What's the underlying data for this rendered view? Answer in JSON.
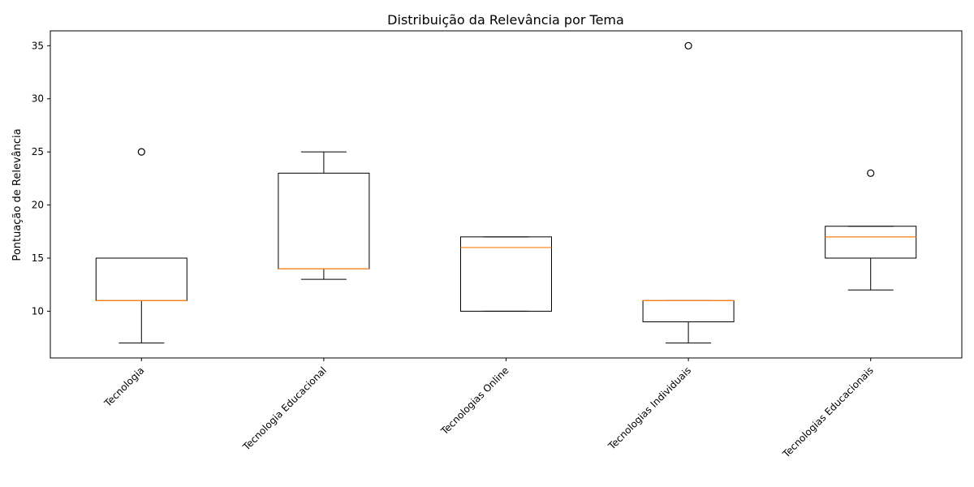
{
  "chart_data": {
    "type": "box",
    "title": "Distribuição da Relevância por Tema",
    "xlabel": "",
    "ylabel": "Pontuação de Relevância",
    "ylim": [
      5.6,
      36.4
    ],
    "yticks": [
      10,
      15,
      20,
      25,
      30,
      35
    ],
    "categories": [
      "Tecnologia",
      "Tecnologia Educacional",
      "Tecnologias Online",
      "Tecnologias Individuais",
      "Tecnologias Educacionais"
    ],
    "boxes": [
      {
        "category": "Tecnologia",
        "whisker_low": 7,
        "q1": 11,
        "median": 11,
        "q3": 15,
        "whisker_high": 15,
        "outliers": [
          25
        ]
      },
      {
        "category": "Tecnologia Educacional",
        "whisker_low": 13,
        "q1": 14,
        "median": 14,
        "q3": 23,
        "whisker_high": 25,
        "outliers": []
      },
      {
        "category": "Tecnologias Online",
        "whisker_low": 10,
        "q1": 10,
        "median": 16,
        "q3": 17,
        "whisker_high": 17,
        "outliers": []
      },
      {
        "category": "Tecnologias Individuais",
        "whisker_low": 7,
        "q1": 9,
        "median": 11,
        "q3": 11,
        "whisker_high": 11,
        "outliers": [
          35
        ]
      },
      {
        "category": "Tecnologias Educacionais",
        "whisker_low": 12,
        "q1": 15,
        "median": 17,
        "q3": 18,
        "whisker_high": 18,
        "outliers": [
          23
        ]
      }
    ],
    "grid": false,
    "legend": "none",
    "colors": {
      "box": "#000000",
      "median": "#ff7f0e",
      "outlier": "#000000"
    }
  }
}
